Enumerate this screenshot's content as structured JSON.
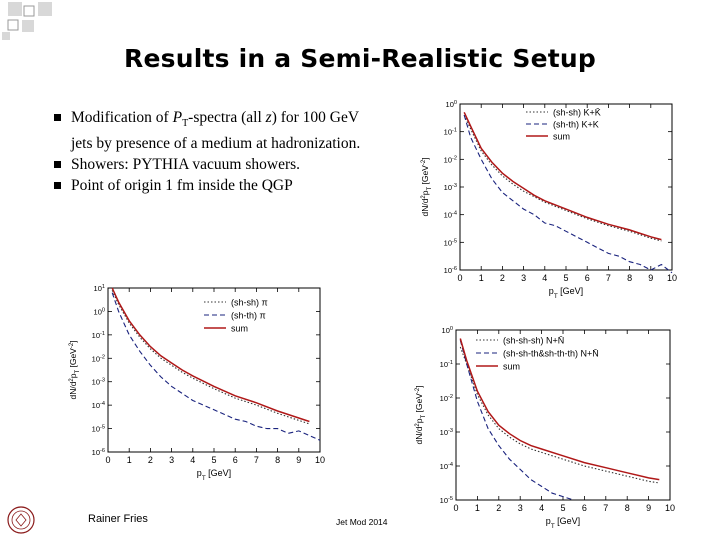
{
  "slide": {
    "title": "Results in a Semi-Realistic Setup",
    "bullets": [
      {
        "pre": "Modification of ",
        "sym": "P",
        "sub": "T",
        "post": "-spectra (all ",
        "var": "z",
        "end": ") for 100 GeV jets by presence of a medium at hadronization."
      },
      {
        "text": "Showers: PYTHIA vacuum showers."
      },
      {
        "text": "Point of origin 1 fm inside the QGP"
      }
    ],
    "footer_author": "Rainer Fries",
    "footer_event": "Jet Mod 2014"
  },
  "colors": {
    "accent_red": "#b01818",
    "accent_blue": "#1a237e",
    "dotted": "#333333"
  },
  "chart_data": [
    {
      "id": "kaon",
      "type": "line",
      "log_y": true,
      "xlim": [
        0,
        10
      ],
      "ylim_exp": [
        -6,
        0
      ],
      "x_ticks": [
        "0",
        "1",
        "2",
        "3",
        "4",
        "5",
        "6",
        "7",
        "8",
        "9",
        "10"
      ],
      "y_ticks": [
        "10^0",
        "10^-1",
        "10^-2",
        "10^-3",
        "10^-4",
        "10^-5",
        "10^-6"
      ],
      "y_tick_exps": [
        0,
        -1,
        -2,
        -3,
        -4,
        -5,
        -6
      ],
      "xlabel": "p_T [GeV]",
      "ylabel": "dN/d^2p_T [GeV^-2]",
      "legend": [
        "(sh-sh) K+K̄",
        "(sh-th) K+K",
        "sum"
      ],
      "series": [
        {
          "name": "(sh-sh) K+K̄",
          "style": "dotted",
          "x": [
            0.2,
            0.5,
            1,
            1.5,
            2,
            2.5,
            3,
            3.5,
            4,
            5,
            6,
            7,
            8,
            9,
            9.5
          ],
          "log_y": [
            -0.4,
            -0.9,
            -1.7,
            -2.2,
            -2.6,
            -2.9,
            -3.15,
            -3.35,
            -3.55,
            -3.85,
            -4.15,
            -4.4,
            -4.6,
            -4.85,
            -4.95
          ]
        },
        {
          "name": "(sh-th) K+K",
          "style": "dashed",
          "x": [
            0.2,
            0.5,
            1,
            1.5,
            2,
            2.5,
            3,
            3.5,
            4,
            4.5,
            5,
            5.5,
            6,
            6.5,
            7,
            7.5,
            8,
            8.5,
            9,
            9.5,
            10
          ],
          "log_y": [
            -0.4,
            -1.2,
            -2.0,
            -2.7,
            -3.2,
            -3.5,
            -3.8,
            -4.0,
            -4.3,
            -4.4,
            -4.6,
            -4.8,
            -5.0,
            -5.2,
            -5.4,
            -5.5,
            -5.7,
            -5.8,
            -6.0,
            -5.8,
            -6.1
          ]
        },
        {
          "name": "sum",
          "style": "solid",
          "x": [
            0.2,
            0.5,
            1,
            1.5,
            2,
            2.5,
            3,
            3.5,
            4,
            5,
            6,
            7,
            8,
            9,
            9.5
          ],
          "log_y": [
            -0.3,
            -0.8,
            -1.6,
            -2.1,
            -2.5,
            -2.8,
            -3.05,
            -3.3,
            -3.5,
            -3.8,
            -4.1,
            -4.35,
            -4.55,
            -4.8,
            -4.9
          ]
        }
      ]
    },
    {
      "id": "pion",
      "type": "line",
      "log_y": true,
      "xlim": [
        0,
        10
      ],
      "ylim_exp": [
        -6,
        1
      ],
      "x_ticks": [
        "0",
        "1",
        "2",
        "3",
        "4",
        "5",
        "6",
        "7",
        "8",
        "9",
        "10"
      ],
      "y_ticks": [
        "10^1",
        "10^0",
        "10^-1",
        "10^-2",
        "10^-3",
        "10^-4",
        "10^-5",
        "10^-6"
      ],
      "y_tick_exps": [
        1,
        0,
        -1,
        -2,
        -3,
        -4,
        -5,
        -6
      ],
      "xlabel": "p_T [GeV]",
      "ylabel": "dN/d^2p_T [GeV^-2]",
      "legend": [
        "(sh-sh) π",
        "(sh-th) π",
        "sum"
      ],
      "series": [
        {
          "name": "(sh-sh) π",
          "style": "dotted",
          "x": [
            0.2,
            0.5,
            1,
            1.5,
            2,
            2.5,
            3,
            3.5,
            4,
            5,
            6,
            7,
            8,
            9,
            9.5
          ],
          "log_y": [
            0.9,
            0.3,
            -0.5,
            -1.1,
            -1.6,
            -2.0,
            -2.3,
            -2.6,
            -2.85,
            -3.3,
            -3.7,
            -4.0,
            -4.35,
            -4.65,
            -4.8
          ]
        },
        {
          "name": "(sh-th) π",
          "style": "dashed",
          "x": [
            0.2,
            0.5,
            1,
            1.5,
            2,
            2.5,
            3,
            3.5,
            4,
            4.5,
            5,
            5.5,
            6,
            6.5,
            7,
            7.5,
            8,
            8.5,
            9,
            9.5,
            10
          ],
          "log_y": [
            0.8,
            0.0,
            -1.0,
            -1.7,
            -2.3,
            -2.8,
            -3.2,
            -3.5,
            -3.8,
            -4.0,
            -4.2,
            -4.4,
            -4.6,
            -4.7,
            -4.9,
            -5.0,
            -5.0,
            -5.2,
            -5.1,
            -5.3,
            -5.5
          ]
        },
        {
          "name": "sum",
          "style": "solid",
          "x": [
            0.2,
            0.5,
            1,
            1.5,
            2,
            2.5,
            3,
            3.5,
            4,
            5,
            6,
            7,
            8,
            9,
            9.5
          ],
          "log_y": [
            1.0,
            0.4,
            -0.4,
            -1.0,
            -1.5,
            -1.9,
            -2.2,
            -2.5,
            -2.75,
            -3.2,
            -3.6,
            -3.9,
            -4.25,
            -4.55,
            -4.7
          ]
        }
      ]
    },
    {
      "id": "nucleon",
      "type": "line",
      "log_y": true,
      "xlim": [
        0,
        10
      ],
      "ylim_exp": [
        -5,
        0
      ],
      "x_ticks": [
        "0",
        "1",
        "2",
        "3",
        "4",
        "5",
        "6",
        "7",
        "8",
        "9",
        "10"
      ],
      "y_ticks": [
        "10^0",
        "10^-1",
        "10^-2",
        "10^-3",
        "10^-4",
        "10^-5"
      ],
      "y_tick_exps": [
        0,
        -1,
        -2,
        -3,
        -4,
        -5
      ],
      "xlabel": "p_T [GeV]",
      "ylabel": "dN/d^2p_T [GeV^-2]",
      "legend": [
        "(sh-sh-sh) N+N̄",
        "(sh-sh-th&sh-th-th) N+N̄",
        "sum"
      ],
      "series": [
        {
          "name": "(sh-sh-sh) N+N̄",
          "style": "dotted",
          "x": [
            0.2,
            0.5,
            1,
            1.5,
            2,
            2.5,
            3,
            3.5,
            4,
            5,
            6,
            7,
            8,
            9,
            9.5
          ],
          "log_y": [
            -0.5,
            -1.0,
            -1.9,
            -2.5,
            -2.9,
            -3.15,
            -3.35,
            -3.5,
            -3.6,
            -3.8,
            -4.0,
            -4.15,
            -4.3,
            -4.45,
            -4.5
          ]
        },
        {
          "name": "(sh-sh-th&sh-th-th) N+N̄",
          "style": "dashed",
          "x": [
            0.2,
            0.5,
            1,
            1.5,
            2,
            2.5,
            3,
            3.5,
            4,
            4.5,
            5,
            5.5
          ],
          "log_y": [
            -0.3,
            -1.0,
            -2.1,
            -2.9,
            -3.4,
            -3.8,
            -4.1,
            -4.4,
            -4.6,
            -4.8,
            -4.9,
            -5.0
          ]
        },
        {
          "name": "sum",
          "style": "solid",
          "x": [
            0.2,
            0.5,
            1,
            1.5,
            2,
            2.5,
            3,
            3.5,
            4,
            5,
            6,
            7,
            8,
            9,
            9.5
          ],
          "log_y": [
            -0.25,
            -0.9,
            -1.8,
            -2.4,
            -2.8,
            -3.05,
            -3.25,
            -3.4,
            -3.5,
            -3.7,
            -3.9,
            -4.05,
            -4.2,
            -4.35,
            -4.4
          ]
        }
      ]
    }
  ]
}
